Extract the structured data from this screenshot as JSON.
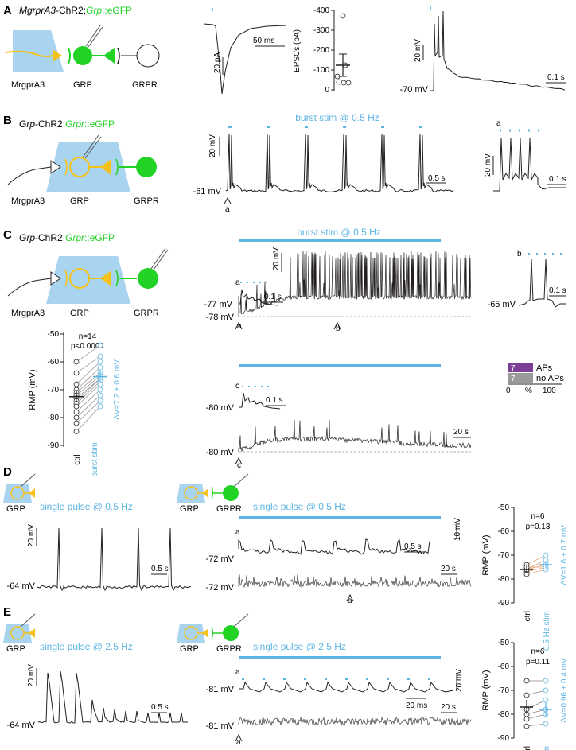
{
  "colors": {
    "blue_fill": "#a9d4ef",
    "blue_line": "#5db4e3",
    "green": "#22d326",
    "yellow": "#f5c21c",
    "purple": "#7b3f98",
    "gray": "#9a9a9a",
    "black": "#231f20"
  },
  "panel_A": {
    "letter": "A",
    "title_parts": [
      "MgrprA3",
      "-ChR2;",
      "Grp",
      "::eGFP"
    ],
    "labels": {
      "mrgpra3": "MrgprA3",
      "grp": "GRP",
      "grpr": "GRPR"
    },
    "trace1_scale": {
      "y": "20 pA",
      "x": "50 ms"
    },
    "dot_ylabel": "EPSCs (pA)",
    "dot_ticks": [
      "-400",
      "-300",
      "-200",
      "-100",
      "0"
    ],
    "trace2_scale": {
      "y": "20 mV",
      "x": "0.1 s"
    },
    "trace2_vm": "-70 mV"
  },
  "panel_B": {
    "letter": "B",
    "title_parts": [
      "Grp",
      "-ChR2;",
      "Grpr",
      "::eGFP"
    ],
    "stim_label": "burst stim @ 0.5 Hz",
    "labels": {
      "mrgpra3": "MrgprA3",
      "grp": "GRP",
      "grpr": "GRPR"
    },
    "scale": {
      "y": "20 mV",
      "x": "0.5 s"
    },
    "vm": "-61 mV",
    "marker": "a",
    "inset": {
      "label": "a",
      "y": "20 mV",
      "x": "0.1 s"
    }
  },
  "panel_C": {
    "letter": "C",
    "title_parts": [
      "Grp",
      "-ChR2;",
      "Grpr",
      "::eGFP"
    ],
    "stim_label": "burst stim @ 0.5 Hz",
    "labels": {
      "mrgpra3": "MrgprA3",
      "grp": "GRP",
      "grpr": "GRPR"
    },
    "scale_y": "20 mV",
    "inset_a": {
      "label": "a",
      "vm": "-77 mV",
      "x": "0.1 s"
    },
    "vm_top": "-78 mV",
    "markers": [
      "a",
      "b"
    ],
    "inset_b": {
      "label": "b",
      "vm": "-65 mV",
      "x": "0.1 s"
    },
    "inset_c": {
      "label": "c",
      "vm": "-80 mV",
      "x": "0.1 s"
    },
    "vm_bottom": "-80 mV",
    "marker_c": "c",
    "scale_x": "20 s",
    "rmp": {
      "ylabel": "RMP (mV)",
      "ticks": [
        "-50",
        "-60",
        "-70",
        "-80",
        "-90"
      ],
      "n": "n=14",
      "p": "p<0.0001",
      "dv": "ΔV=7.2 ± 0.8 mV",
      "x_labels": [
        "ctrl",
        "burst stim"
      ]
    },
    "bar": {
      "top_count": "7",
      "top_label": "APs",
      "bottom_count": "7",
      "bottom_label": "no APs",
      "axis": [
        "0",
        "%",
        "100"
      ]
    }
  },
  "panel_D": {
    "letter": "D",
    "left": {
      "label_grp": "GRP",
      "stim": "single pulse @ 0.5 Hz",
      "y": "20 mV",
      "x": "0.5 s",
      "vm": "-64 mV"
    },
    "right": {
      "label_grp": "GRP",
      "label_grpr": "GRPR",
      "stim": "single pulse @ 0.5 Hz",
      "y": "10 mV",
      "inset_label": "a",
      "inset_vm": "-72 mV",
      "inset_x": "0.5 s",
      "vm": "-72 mV",
      "x": "20 s",
      "marker": "a"
    },
    "rmp": {
      "ylabel": "RMP (mV)",
      "ticks": [
        "-50",
        "-60",
        "-70",
        "-80",
        "-90"
      ],
      "n": "n=6",
      "p": "p=0.13",
      "dv": "ΔV=1.6 ± 0.7 mV",
      "x_labels": [
        "ctrl",
        "0.5 Hz stim"
      ]
    }
  },
  "panel_E": {
    "letter": "E",
    "left": {
      "label_grp": "GRP",
      "stim": "single pulse @ 2.5 Hz",
      "y": "20 mV",
      "x": "0.5 s",
      "vm": "-64 mV"
    },
    "right": {
      "label_grp": "GRP",
      "label_grpr": "GRPR",
      "stim": "single pulse @ 2.5 Hz",
      "y": "20 mV",
      "inset_label": "a",
      "inset_vm": "-81 mV",
      "inset_x": "20 ms",
      "vm": "-81 mV",
      "x": "20 s",
      "marker": "a"
    },
    "rmp": {
      "ylabel": "RMP (mV)",
      "ticks": [
        "-50",
        "-60",
        "-70",
        "-80",
        "-90"
      ],
      "n": "n=6",
      "p": "p=0.11",
      "dv": "ΔV=0.96 ± 0.4 mV",
      "x_labels": [
        "ctrl",
        "2.5 Hz stim"
      ]
    }
  }
}
